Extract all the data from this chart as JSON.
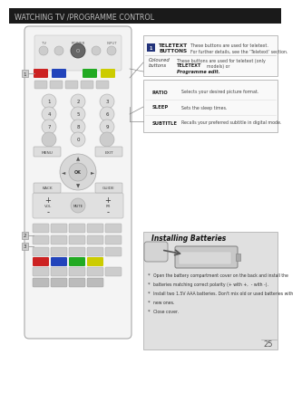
{
  "title": "WATCHING TV /PROGRAMME CONTROL",
  "page_bg": "#ffffff",
  "title_bar_color": "#1a1a1a",
  "title_text_color": "#bbbbbb",
  "page_number": "25",
  "box1_lines": [
    [
      "TELETEXT",
      "These buttons are used for teletext."
    ],
    [
      "BUTTONS",
      "For further details, see the ‘Teletext’ section."
    ]
  ],
  "box2_label1": "Coloured",
  "box2_label2": "buttons",
  "box2_text1": "These buttons are used for teletext (only",
  "box2_bold": "TELETEXT",
  "box2_text2": "models) or",
  "box2_bold2": "Programme edit.",
  "box3_lines": [
    [
      "RATIO",
      "Selects your desired picture format."
    ],
    [
      "SLEEP",
      "Sets the sleep times."
    ],
    [
      "SUBTITLE",
      "Recalls your preferred subtitle in digital mode."
    ]
  ],
  "install_title": "Installing Batteries",
  "install_bullets": [
    "Open the battery compartment cover on the back and install the",
    "batteries matching correct polarity (+ with +,  - with -).",
    "Install two 1.5V AAA batteries. Don't mix old or used batteries with",
    "new ones.",
    "Close cover."
  ],
  "remote_fill": "#f4f4f4",
  "remote_edge": "#aaaaaa",
  "btn_fill": "#dddddd",
  "btn_edge": "#aaaaaa",
  "colored_btns": [
    "#cc2222",
    "#2244bb",
    "#22aa22",
    "#cccc00"
  ],
  "install_bg": "#e0e0e0",
  "box_bg": "#f9f9f9",
  "box_edge": "#bbbbbb"
}
